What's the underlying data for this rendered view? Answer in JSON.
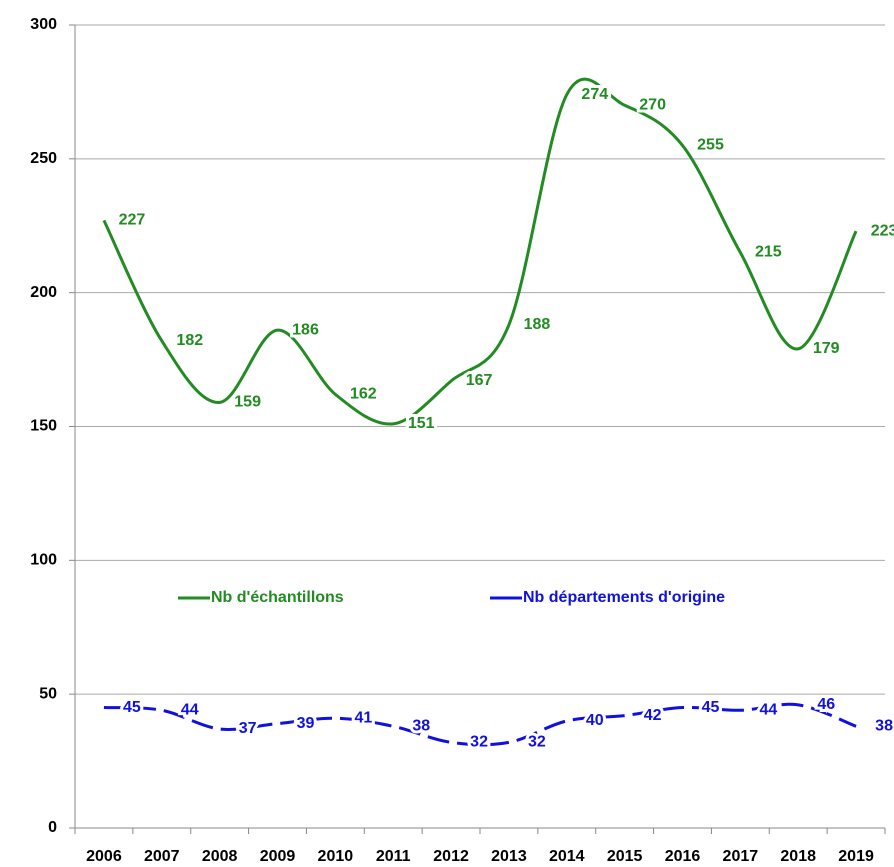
{
  "chart_data": {
    "type": "line",
    "categories": [
      "2006",
      "2007",
      "2008",
      "2009",
      "2010",
      "2011",
      "2012",
      "2013",
      "2014",
      "2015",
      "2016",
      "2017",
      "2018",
      "2019"
    ],
    "series": [
      {
        "name": "Nb d'échantillons",
        "color": "#228b22",
        "values": [
          227,
          182,
          159,
          186,
          162,
          151,
          167,
          188,
          274,
          270,
          255,
          215,
          179,
          223
        ]
      },
      {
        "name": "Nb départements d'origine",
        "color": "#1010e0",
        "dashed": true,
        "values": [
          45,
          44,
          37,
          39,
          41,
          38,
          32,
          32,
          40,
          42,
          45,
          44,
          46,
          38
        ]
      }
    ],
    "ylim": [
      0,
      300
    ],
    "yticks": [
      0,
      50,
      100,
      150,
      200,
      250,
      300
    ],
    "grid": true
  }
}
